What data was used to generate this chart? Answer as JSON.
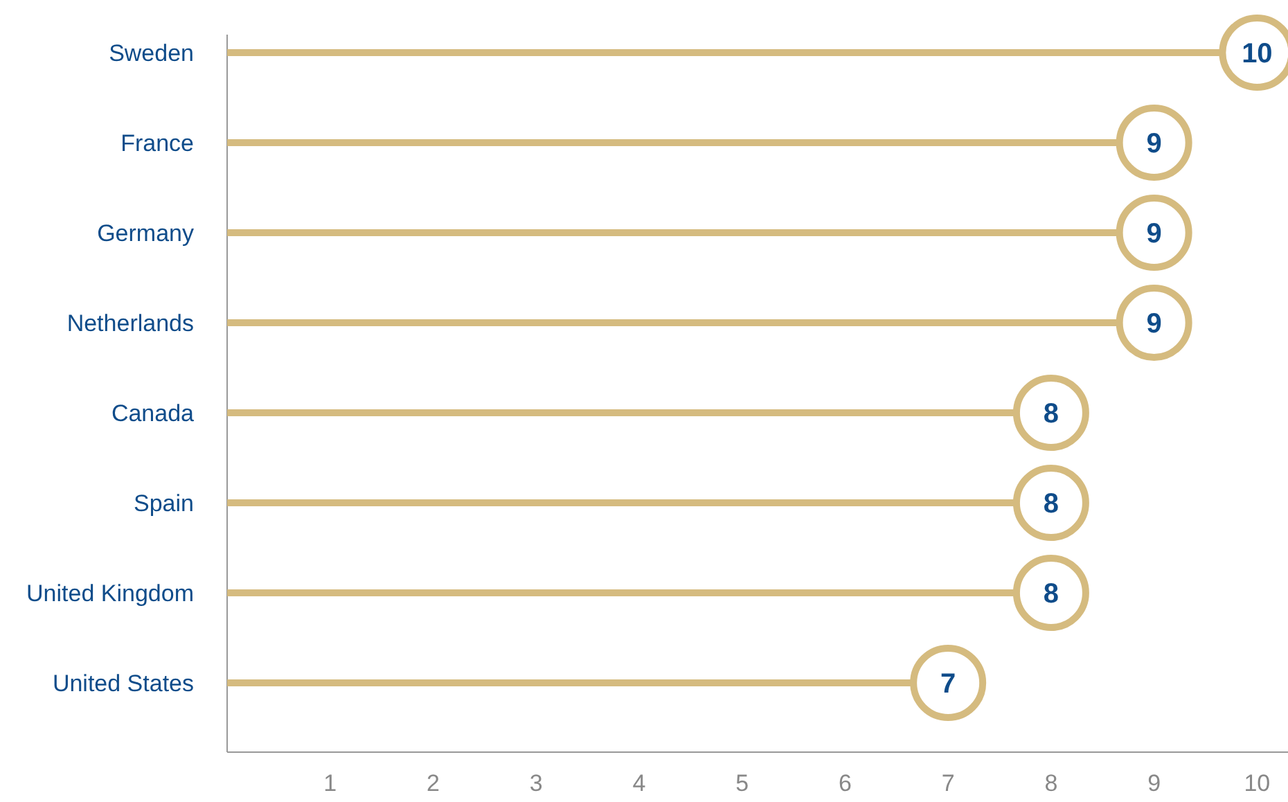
{
  "chart_data": {
    "type": "lollipop",
    "orientation": "horizontal",
    "categories": [
      "Sweden",
      "France",
      "Germany",
      "Netherlands",
      "Canada",
      "Spain",
      "United Kingdom",
      "United States"
    ],
    "values": [
      10,
      9,
      9,
      9,
      8,
      8,
      8,
      7
    ],
    "color": "#d5bb7f",
    "xlim": [
      0,
      10.3
    ],
    "xticks": [
      1,
      2,
      3,
      4,
      5,
      6,
      7,
      8,
      9,
      10
    ],
    "data_labels": true
  }
}
